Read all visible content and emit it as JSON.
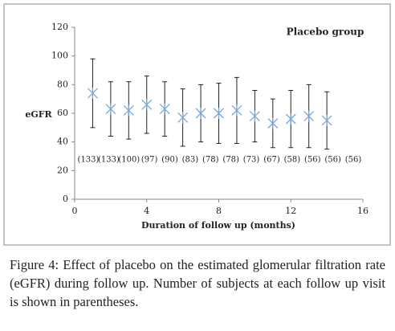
{
  "chart_data": {
    "type": "errorbar",
    "title": "Placebo group",
    "x_label": "Duration of follow up (months)",
    "y_label": "eGFR",
    "x": [
      1,
      2,
      3,
      4,
      5,
      6,
      7,
      8,
      9,
      10,
      11,
      12,
      13,
      14
    ],
    "values": [
      74,
      63,
      62,
      66,
      63,
      57,
      60,
      60,
      62,
      58,
      53,
      56,
      58,
      55
    ],
    "errors": [
      24,
      19,
      20,
      20,
      19,
      20,
      20,
      21,
      23,
      18,
      17,
      20,
      22,
      20
    ],
    "color": "#7aa6d8",
    "error_color": "#222222",
    "count_labels": [
      "(133)",
      "(133)",
      "(100)",
      "(97)",
      "(90)",
      "(83)",
      "(78)",
      "(78)",
      "(73)",
      "(67)",
      "(58)",
      "(56)",
      "(56)",
      "(56)"
    ],
    "xlim": [
      0,
      16
    ],
    "xticks": [
      0,
      4,
      8,
      12,
      16
    ],
    "ylim": [
      0,
      120
    ],
    "yticks": [
      0,
      20,
      40,
      60,
      80,
      100,
      120
    ]
  },
  "caption": {
    "label": "Figure 4:",
    "text": "Effect of placebo on the estimated glomerular filtration rate (eGFR) during follow up. Number of subjects at each follow up visit is shown in parentheses."
  }
}
